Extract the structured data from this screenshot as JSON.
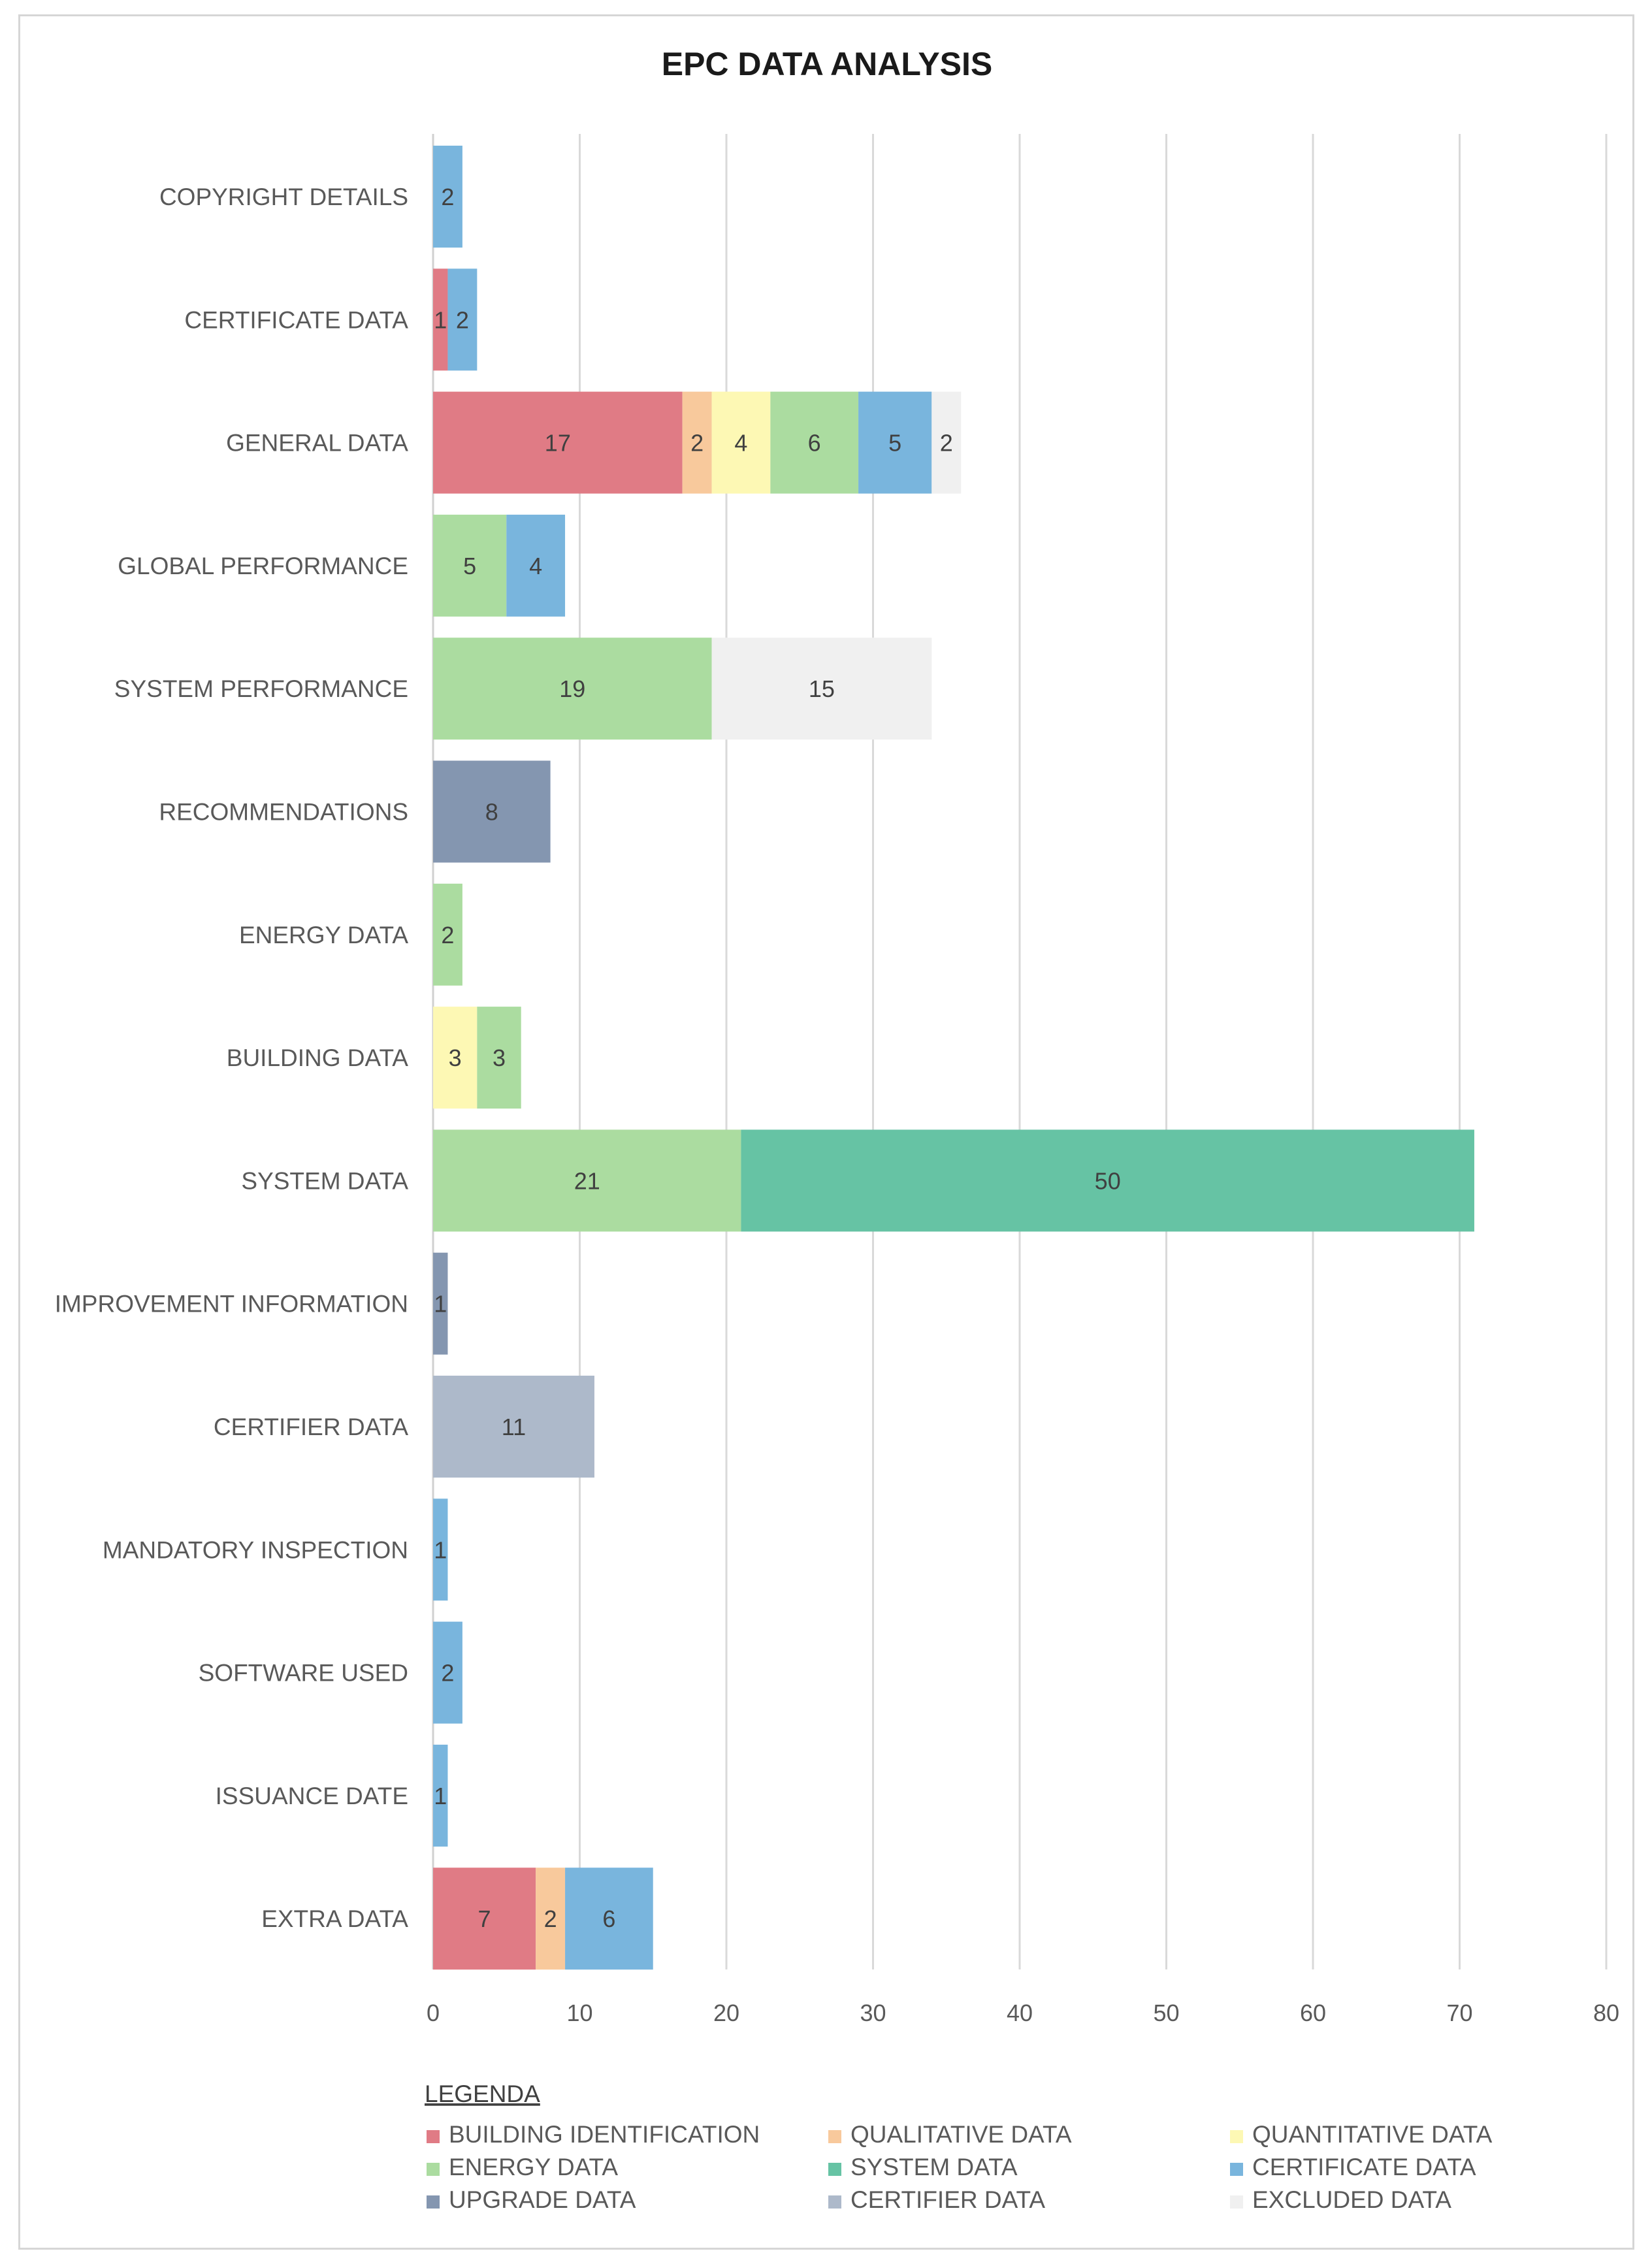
{
  "chart_data": {
    "type": "bar",
    "orientation": "horizontal",
    "stacked": true,
    "title": "EPC DATA ANALYSIS",
    "xlabel": "",
    "ylabel": "",
    "xlim": [
      0,
      80
    ],
    "xticks": [
      0,
      10,
      20,
      30,
      40,
      50,
      60,
      70,
      80
    ],
    "grid": true,
    "categories": [
      "COPYRIGHT DETAILS",
      "CERTIFICATE DATA",
      "GENERAL DATA",
      "GLOBAL PERFORMANCE",
      "SYSTEM PERFORMANCE",
      "RECOMMENDATIONS",
      "ENERGY DATA",
      "BUILDING DATA",
      "SYSTEM DATA",
      "IMPROVEMENT INFORMATION",
      "CERTIFIER DATA",
      "MANDATORY INSPECTION",
      "SOFTWARE USED",
      "ISSUANCE DATE",
      "EXTRA DATA"
    ],
    "series": [
      {
        "name": "BUILDING IDENTIFICATION",
        "color": "#e07b85",
        "values": [
          0,
          1,
          17,
          0,
          0,
          0,
          0,
          0,
          0,
          0,
          0,
          0,
          0,
          0,
          7
        ]
      },
      {
        "name": "QUALITATIVE DATA",
        "color": "#f8c99c",
        "values": [
          0,
          0,
          2,
          0,
          0,
          0,
          0,
          0,
          0,
          0,
          0,
          0,
          0,
          0,
          2
        ]
      },
      {
        "name": "QUANTITATIVE DATA",
        "color": "#fdf8b4",
        "values": [
          0,
          0,
          4,
          0,
          0,
          0,
          0,
          3,
          0,
          0,
          0,
          0,
          0,
          0,
          0
        ]
      },
      {
        "name": "ENERGY DATA",
        "color": "#abdca0",
        "values": [
          0,
          0,
          6,
          5,
          19,
          0,
          2,
          3,
          21,
          0,
          0,
          0,
          0,
          0,
          0
        ]
      },
      {
        "name": "SYSTEM DATA",
        "color": "#66c3a4",
        "values": [
          0,
          0,
          0,
          0,
          0,
          0,
          0,
          0,
          50,
          0,
          0,
          0,
          0,
          0,
          0
        ]
      },
      {
        "name": "CERTIFICATE DATA",
        "color": "#79b5dd",
        "values": [
          2,
          2,
          5,
          4,
          0,
          0,
          0,
          0,
          0,
          0,
          0,
          1,
          2,
          1,
          6
        ]
      },
      {
        "name": "UPGRADE DATA",
        "color": "#8496b0",
        "values": [
          0,
          0,
          0,
          0,
          0,
          8,
          0,
          0,
          0,
          1,
          0,
          0,
          0,
          0,
          0
        ]
      },
      {
        "name": "CERTIFIER DATA",
        "color": "#adb9ca",
        "values": [
          0,
          0,
          0,
          0,
          0,
          0,
          0,
          0,
          0,
          0,
          11,
          0,
          0,
          0,
          0
        ]
      },
      {
        "name": "EXCLUDED DATA",
        "color": "#f0f0f0",
        "values": [
          0,
          0,
          2,
          0,
          15,
          0,
          0,
          0,
          0,
          0,
          0,
          0,
          0,
          0,
          0
        ]
      }
    ],
    "legend": {
      "title": "LEGENDA",
      "placement": "bottom-left"
    }
  }
}
